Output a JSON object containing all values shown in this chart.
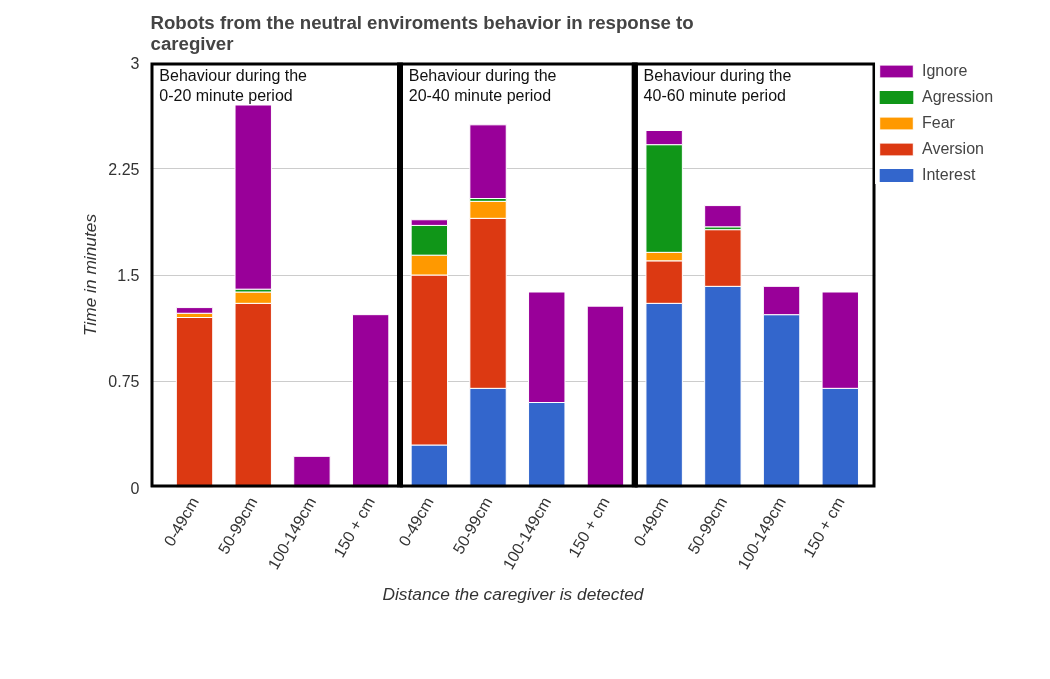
{
  "chart_data": {
    "type": "bar",
    "stacked": true,
    "title": "Robots from the neutral enviroments behavior in response to caregiver",
    "xlabel": "Distance the caregiver is detected",
    "ylabel": "Time in minutes",
    "categories": [
      "0-49cm",
      "50-99cm",
      "100-149cm",
      "150 + cm",
      "0-49cm",
      "50-99cm",
      "100-149cm",
      "150 + cm",
      "0-49cm",
      "50-99cm",
      "100-149cm",
      "150 + cm"
    ],
    "series": [
      {
        "name": "Interest",
        "color": "#3366cc",
        "values": [
          0,
          0,
          0,
          0,
          0.3,
          0.7,
          0.6,
          0,
          1.3,
          1.42,
          1.22,
          0.7
        ]
      },
      {
        "name": "Aversion",
        "color": "#dc3912",
        "values": [
          1.2,
          1.3,
          0,
          0,
          1.2,
          1.2,
          0,
          0,
          0.3,
          0.4,
          0,
          0
        ]
      },
      {
        "name": "Fear",
        "color": "#ff9900",
        "values": [
          0.03,
          0.08,
          0,
          0,
          0.14,
          0.12,
          0,
          0,
          0.06,
          0,
          0,
          0
        ]
      },
      {
        "name": "Agression",
        "color": "#109618",
        "values": [
          0,
          0.02,
          0,
          0,
          0.21,
          0.02,
          0,
          0,
          0.76,
          0.02,
          0,
          0
        ]
      },
      {
        "name": "Ignore",
        "color": "#990099",
        "values": [
          0.04,
          1.3,
          0.22,
          1.22,
          0.04,
          0.52,
          0.78,
          1.28,
          0.1,
          0.15,
          0.2,
          0.68
        ]
      }
    ],
    "ylim": [
      0,
      3
    ],
    "yticks": [
      0,
      0.75,
      1.5,
      2.25,
      3
    ],
    "grid": "y",
    "legend": "top right",
    "annotations": [
      "Behaviour during the 0-20 minute period",
      "Behaviour during the 20-40 minute period",
      "Behaviour during the 40-60 minute period"
    ]
  }
}
